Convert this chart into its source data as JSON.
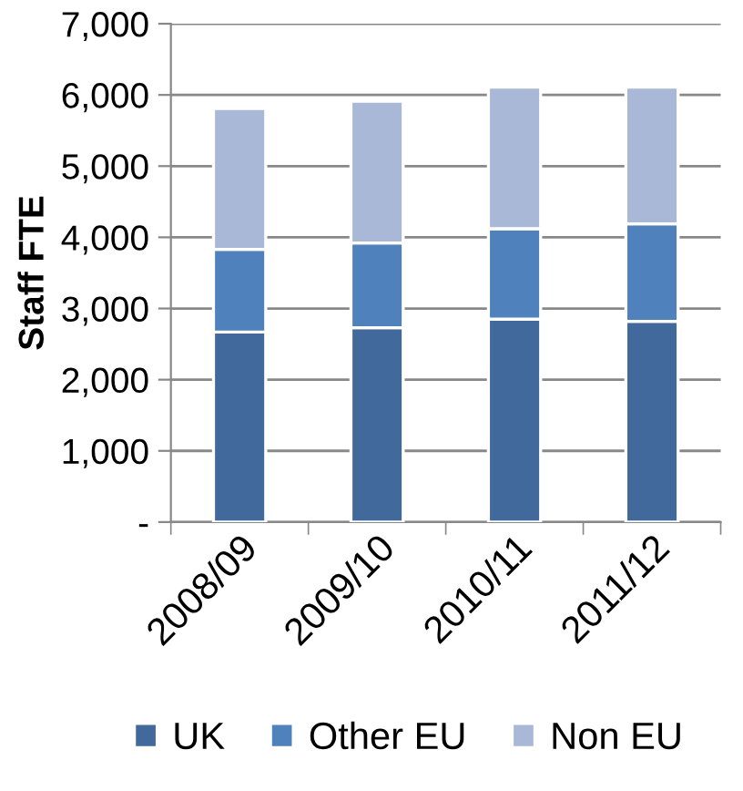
{
  "chart_data": {
    "type": "bar",
    "stacked": true,
    "ylabel": "Staff FTE",
    "categories": [
      "2008/09",
      "2009/10",
      "2010/11",
      "2011/12"
    ],
    "series": [
      {
        "name": "UK",
        "color": "#41699b",
        "values": [
          2670,
          2730,
          2850,
          2820
        ]
      },
      {
        "name": "Other EU",
        "color": "#4f81bd",
        "values": [
          1160,
          1190,
          1270,
          1370
        ]
      },
      {
        "name": "Non EU",
        "color": "#a9b8d6",
        "values": [
          1980,
          1990,
          1990,
          1920
        ]
      }
    ],
    "ylim": [
      0,
      7000
    ],
    "yticks": [
      {
        "value": 0,
        "label": "-"
      },
      {
        "value": 1000,
        "label": "1,000"
      },
      {
        "value": 2000,
        "label": "2,000"
      },
      {
        "value": 3000,
        "label": "3,000"
      },
      {
        "value": 4000,
        "label": "4,000"
      },
      {
        "value": 5000,
        "label": "5,000"
      },
      {
        "value": 6000,
        "label": "6,000"
      },
      {
        "value": 7000,
        "label": "7,000"
      }
    ],
    "grid": "y",
    "legend": "bottom"
  }
}
